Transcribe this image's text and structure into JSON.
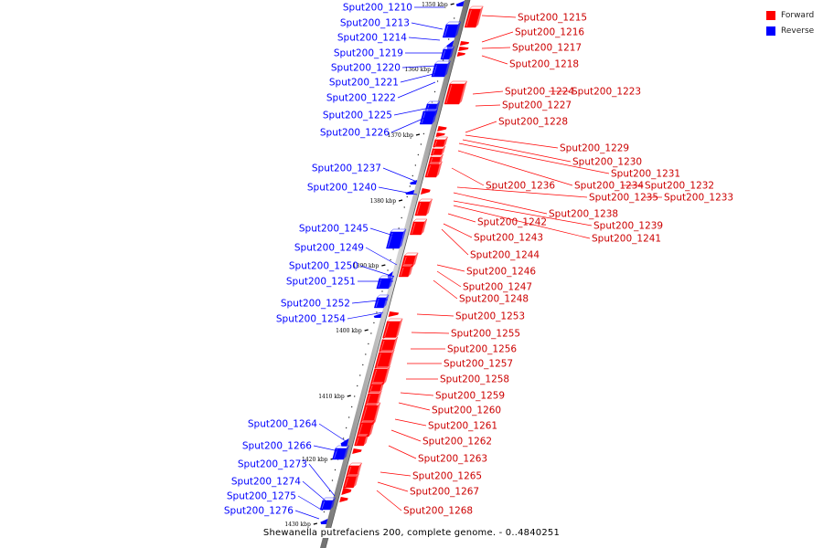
{
  "legend": {
    "forward": {
      "label": "Forward",
      "color": "#ff0000"
    },
    "reverse": {
      "label": "Reverse",
      "color": "#0000ff"
    }
  },
  "caption": "Shewanella putrefaciens 200, complete genome. - 0..4840251",
  "ticks": [
    "1350 kbp",
    "1360 kbp",
    "1370 kbp",
    "1380 kbp",
    "1390 kbp",
    "1400 kbp",
    "1410 kbp",
    "1420 kbp",
    "1430 kbp"
  ],
  "reverse_genes": [
    "Sput200_1210",
    "Sput200_1213",
    "Sput200_1214",
    "Sput200_1219",
    "Sput200_1220",
    "Sput200_1221",
    "Sput200_1222",
    "Sput200_1225",
    "Sput200_1226",
    "Sput200_1237",
    "Sput200_1240",
    "Sput200_1245",
    "Sput200_1249",
    "Sput200_1250",
    "Sput200_1251",
    "Sput200_1252",
    "Sput200_1254",
    "Sput200_1264",
    "Sput200_1266",
    "Sput200_1273",
    "Sput200_1274",
    "Sput200_1275",
    "Sput200_1276"
  ],
  "forward_genes": [
    "Sput200_1215",
    "Sput200_1216",
    "Sput200_1217",
    "Sput200_1218",
    "Sput200_1224",
    "Sput200_1223",
    "Sput200_1227",
    "Sput200_1228",
    "Sput200_1229",
    "Sput200_1230",
    "Sput200_1231",
    "Sput200_1234",
    "Sput200_1232",
    "Sput200_1236",
    "Sput200_1235",
    "Sput200_1233",
    "Sput200_1238",
    "Sput200_1242",
    "Sput200_1239",
    "Sput200_1243",
    "Sput200_1241",
    "Sput200_1244",
    "Sput200_1246",
    "Sput200_1247",
    "Sput200_1248",
    "Sput200_1253",
    "Sput200_1255",
    "Sput200_1256",
    "Sput200_1257",
    "Sput200_1258",
    "Sput200_1259",
    "Sput200_1260",
    "Sput200_1261",
    "Sput200_1262",
    "Sput200_1263",
    "Sput200_1265",
    "Sput200_1267",
    "Sput200_1268"
  ]
}
